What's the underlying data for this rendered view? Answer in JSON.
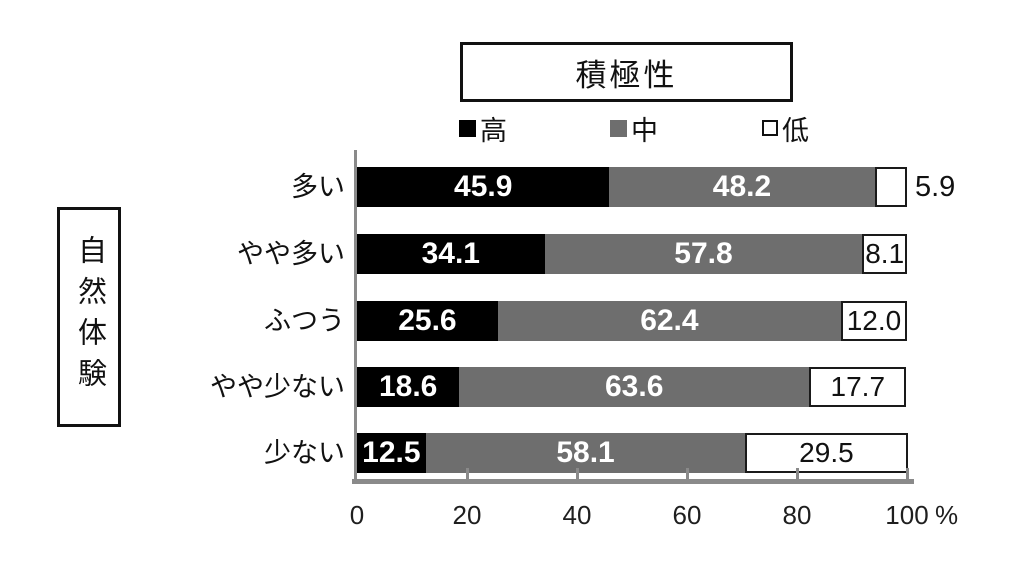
{
  "title": "積極性",
  "group_label": "自然体験",
  "legend": {
    "items": [
      {
        "key": "high",
        "label": "高",
        "swatch_color": "#000000"
      },
      {
        "key": "mid",
        "label": "中",
        "swatch_color": "#6e6e6e"
      },
      {
        "key": "low",
        "label": "低",
        "swatch_color": "#ffffff"
      }
    ]
  },
  "axis": {
    "unit": "%",
    "ticks": [
      0,
      20,
      40,
      60,
      80,
      100
    ]
  },
  "colors": {
    "axis_gray": "#8a8a8a",
    "bar_black": "#000000",
    "bar_gray": "#6e6e6e",
    "bar_white": "#ffffff"
  },
  "chart_data": {
    "type": "bar",
    "orientation": "horizontal",
    "stacked": true,
    "title": "積極性",
    "ylabel": "自然体験",
    "xlabel": "%",
    "xlim": [
      0,
      100
    ],
    "x_ticks": [
      0,
      20,
      40,
      60,
      80,
      100
    ],
    "grid": false,
    "legend_position": "top",
    "categories": [
      "多い",
      "やや多い",
      "ふつう",
      "やや少ない",
      "少ない"
    ],
    "series": [
      {
        "name": "高",
        "color": "#000000",
        "text_color": "#ffffff",
        "values": [
          45.9,
          34.1,
          25.6,
          18.6,
          12.5
        ]
      },
      {
        "name": "中",
        "color": "#6e6e6e",
        "text_color": "#ffffff",
        "values": [
          48.2,
          57.8,
          62.4,
          63.6,
          58.1
        ]
      },
      {
        "name": "低",
        "color": "#ffffff",
        "text_color": "#111111",
        "values": [
          5.9,
          8.1,
          12.0,
          17.7,
          29.5
        ]
      }
    ]
  }
}
